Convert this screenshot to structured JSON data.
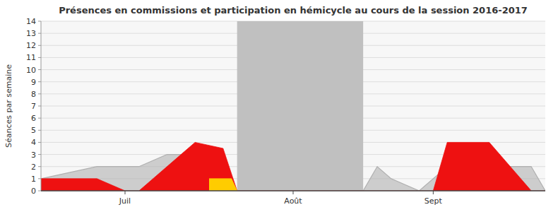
{
  "chart_data": {
    "type": "area",
    "title": "Présences en commissions et participation en hémicycle au cours de la session 2016-2017",
    "y_label": "Séances par semaine",
    "xlim": [
      0,
      18
    ],
    "xticks": [
      {
        "value": 3,
        "label": "Juil"
      },
      {
        "value": 9,
        "label": "Août"
      },
      {
        "value": 14,
        "label": "Sept"
      }
    ],
    "ylim": [
      0,
      14
    ],
    "yticks": [
      0,
      1,
      2,
      3,
      4,
      5,
      6,
      7,
      8,
      9,
      10,
      11,
      12,
      13,
      14
    ],
    "grid": true,
    "bands": [
      {
        "x": [
          7.0,
          11.5
        ],
        "color": "#c0c0c0"
      }
    ],
    "series": [
      {
        "color": "#b0b0b0",
        "x": [
          0.0,
          2.0,
          3.0,
          3.5,
          4.5,
          5.5,
          6.5,
          7.0,
          11.5,
          12.0,
          12.5,
          13.5,
          14.5,
          16.0,
          17.5,
          18.0
        ],
        "values": [
          1.0,
          2.0,
          2.0,
          2.0,
          3.0,
          3.0,
          1.0,
          0.0,
          0.0,
          2.0,
          1.0,
          0.0,
          2.0,
          2.0,
          2.0,
          0.0
        ]
      },
      {
        "color": "#ee1111",
        "x": [
          0.0,
          2.0,
          3.0,
          3.5,
          5.5,
          6.5,
          7.0,
          11.5,
          12.5,
          13.5,
          14.0,
          14.5,
          16.0,
          17.5,
          18.0
        ],
        "values": [
          1.0,
          1.0,
          0.0,
          0.0,
          4.0,
          3.5,
          0.0,
          0.0,
          0.0,
          0.0,
          0.0,
          4.0,
          4.0,
          0.0,
          0.0
        ]
      },
      {
        "color": "#ffcc00",
        "x": [
          6.0,
          6.8,
          7.0
        ],
        "values": [
          1.0,
          1.0,
          0.0
        ]
      }
    ]
  }
}
